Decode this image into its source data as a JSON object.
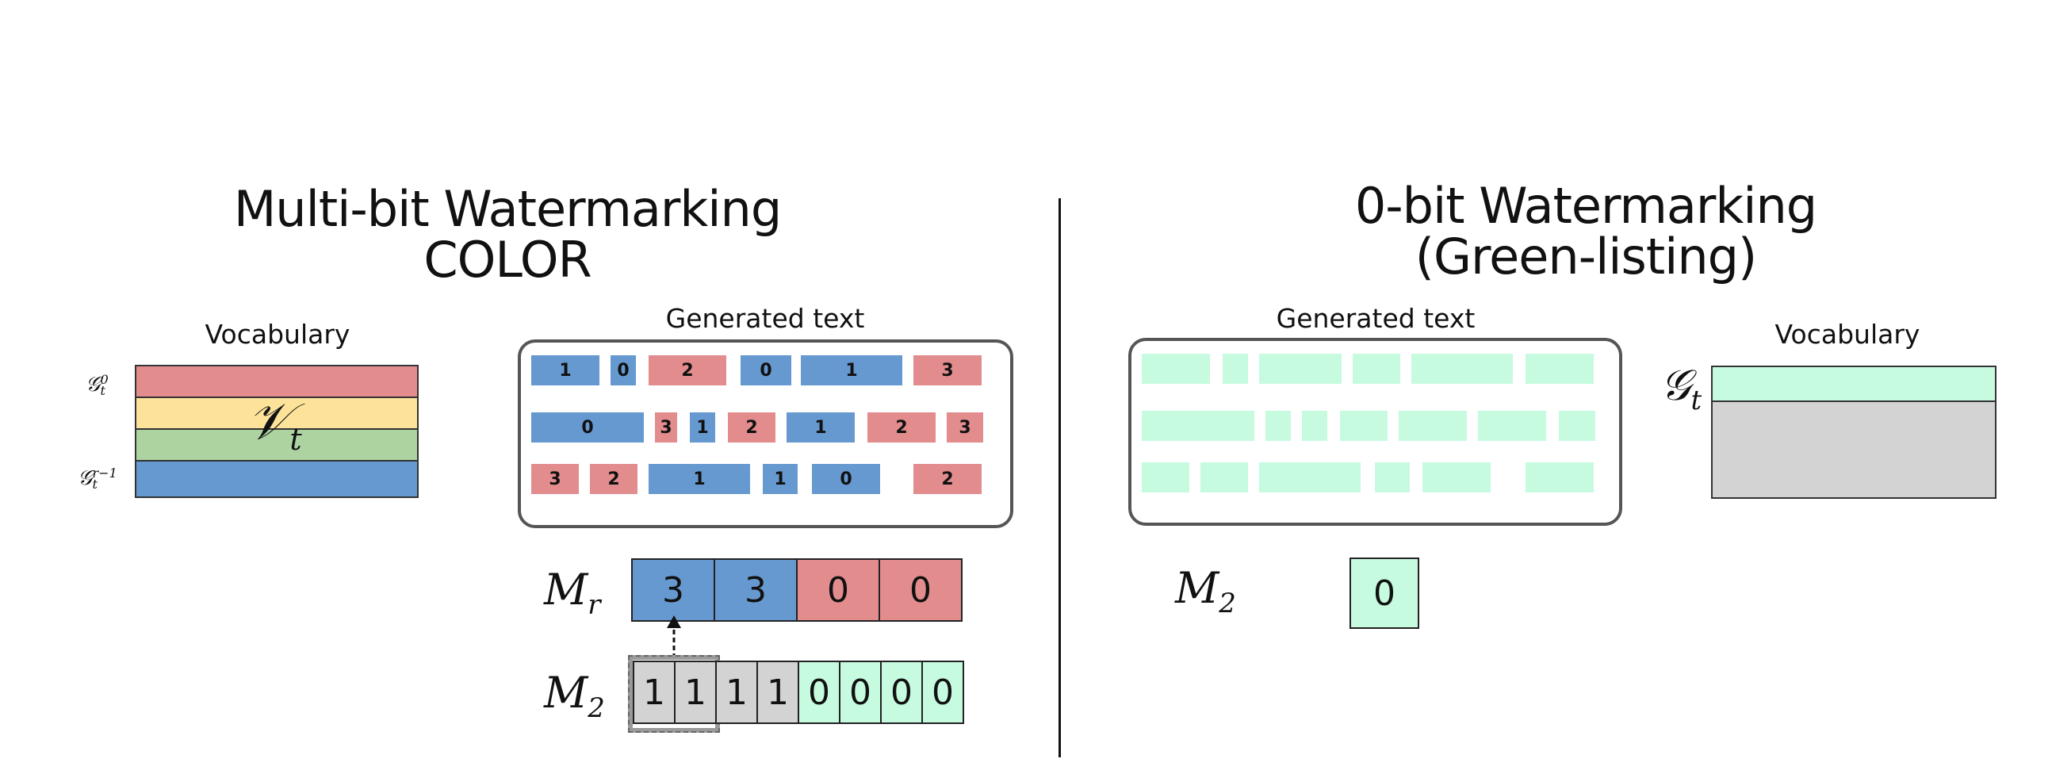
{
  "left": {
    "title_line1": "Multi-bit Watermarking",
    "title_line2": "COLOR",
    "vocab_label": "Vocabulary",
    "vocab_symbol": "𝒱",
    "vocab_sub": "t",
    "g_top": "𝒢",
    "g_top_sup": "0",
    "g_top_sub": "t",
    "g_bottom": "𝒢",
    "g_bottom_sup": "r−1",
    "g_bottom_sub": "t",
    "generated_label": "Generated text",
    "tokens": [
      [
        {
          "v": "1",
          "c": "blue"
        },
        {
          "v": "0",
          "c": "blue"
        },
        {
          "v": "2",
          "c": "red"
        },
        {
          "v": "0",
          "c": "blue"
        },
        {
          "v": "1",
          "c": "blue"
        },
        {
          "v": "3",
          "c": "red"
        }
      ],
      [
        {
          "v": "0",
          "c": "blue"
        },
        {
          "v": "3",
          "c": "red"
        },
        {
          "v": "1",
          "c": "blue"
        },
        {
          "v": "2",
          "c": "red"
        },
        {
          "v": "1",
          "c": "blue"
        },
        {
          "v": "2",
          "c": "red"
        },
        {
          "v": "3",
          "c": "red"
        }
      ],
      [
        {
          "v": "3",
          "c": "red"
        },
        {
          "v": "2",
          "c": "red"
        },
        {
          "v": "1",
          "c": "blue"
        },
        {
          "v": "1",
          "c": "blue"
        },
        {
          "v": "0",
          "c": "blue"
        },
        {
          "v": "2",
          "c": "red"
        }
      ]
    ],
    "mr_label": "M",
    "mr_sub": "r",
    "mr_cells": [
      {
        "v": "3",
        "c": "blue"
      },
      {
        "v": "3",
        "c": "blue"
      },
      {
        "v": "0",
        "c": "red"
      },
      {
        "v": "0",
        "c": "red"
      }
    ],
    "m2_label": "M",
    "m2_sub": "2",
    "m2_cells": [
      {
        "v": "1",
        "c": "gray"
      },
      {
        "v": "1",
        "c": "gray"
      },
      {
        "v": "1",
        "c": "gray"
      },
      {
        "v": "1",
        "c": "gray"
      },
      {
        "v": "0",
        "c": "mint"
      },
      {
        "v": "0",
        "c": "mint"
      },
      {
        "v": "0",
        "c": "mint"
      },
      {
        "v": "0",
        "c": "mint"
      }
    ]
  },
  "right": {
    "title_line1": "0-bit Watermarking",
    "title_line2": "(Green-listing)",
    "generated_label": "Generated text",
    "vocab_label": "Vocabulary",
    "g_symbol": "𝒢",
    "g_sub": "t",
    "m2_label": "M",
    "m2_sub": "2",
    "m2_value": "0"
  },
  "colors": {
    "red": "#e28c8e",
    "blue": "#6699d0",
    "yellow": "#fde39a",
    "green": "#acd3a0",
    "mint": "#c6fbe0",
    "gray": "#d3d3d3",
    "border": "#555555"
  }
}
